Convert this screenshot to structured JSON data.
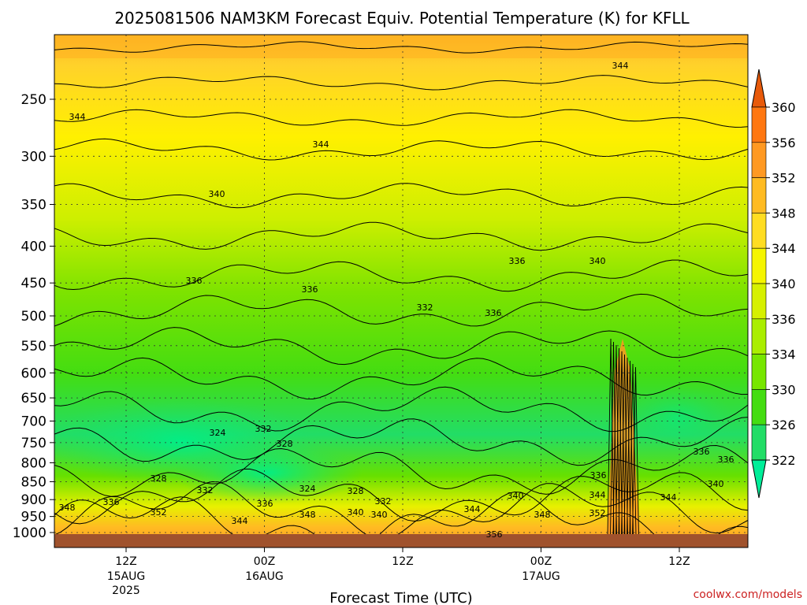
{
  "chart_data": {
    "type": "heatmap",
    "title": "2025081506 NAM3KM Forecast Equiv. Potential Temperature (K) for KFLL",
    "xlabel": "Forecast Time (UTC)",
    "ylabel": "",
    "y_scale": "log-pressure",
    "y_reversed": true,
    "y_ticks": [
      250,
      300,
      350,
      400,
      450,
      500,
      550,
      600,
      650,
      700,
      750,
      800,
      850,
      900,
      950,
      1000
    ],
    "x_ticks": [
      {
        "label": "12Z",
        "sub1": "15AUG",
        "sub2": "2025"
      },
      {
        "label": "00Z",
        "sub1": "16AUG",
        "sub2": ""
      },
      {
        "label": "12Z",
        "sub1": "",
        "sub2": ""
      },
      {
        "label": "00Z",
        "sub1": "17AUG",
        "sub2": ""
      },
      {
        "label": "12Z",
        "sub1": "",
        "sub2": ""
      }
    ],
    "grid": true,
    "colorbar": {
      "ticks": [
        322,
        326,
        330,
        334,
        336,
        340,
        344,
        348,
        352,
        356,
        360
      ],
      "colors": [
        "#00ee99",
        "#22dd66",
        "#44dd11",
        "#77e600",
        "#aaee00",
        "#d6f000",
        "#f5f500",
        "#ffdd22",
        "#ffbb22",
        "#ff9922",
        "#ff7711",
        "#e85a0a"
      ]
    },
    "contour_labels": [
      "344",
      "344",
      "344",
      "340",
      "336",
      "336",
      "336",
      "340",
      "332",
      "336",
      "324",
      "332",
      "328",
      "328",
      "332",
      "324",
      "328",
      "336",
      "336",
      "336",
      "340",
      "344",
      "336",
      "348",
      "352",
      "344",
      "348",
      "340",
      "332",
      "344",
      "340",
      "348",
      "352",
      "344",
      "340",
      "336",
      "356"
    ],
    "surface_color": "#a0522d",
    "source": "coolwx.com/models"
  }
}
